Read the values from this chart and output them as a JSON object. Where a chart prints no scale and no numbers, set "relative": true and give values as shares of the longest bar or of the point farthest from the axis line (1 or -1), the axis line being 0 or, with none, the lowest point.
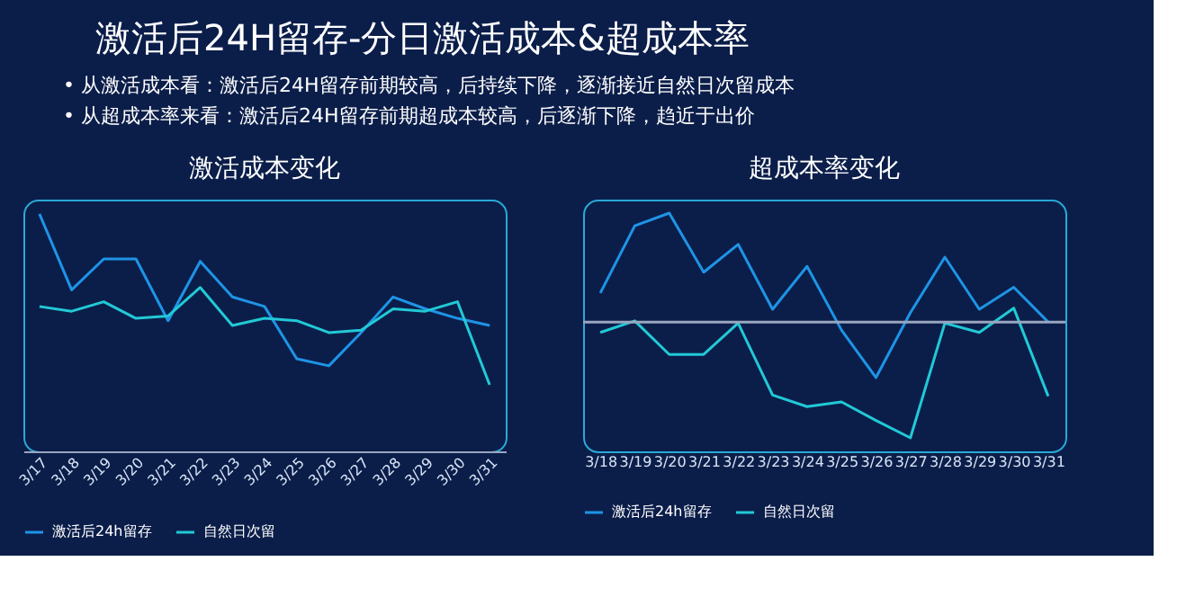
{
  "chart_data": [
    {
      "type": "line",
      "title": "激活成本变化",
      "annotations": [
        "激活后24H留存-分日激活成本&超成本率",
        "•  从激活成本看：激活后24H留存前期较高，后持续下降，逐渐接近自然日次留成本",
        "•  从超成本率来看：激活后24H留存前期超成本较高，后逐渐下降，趋近于出价"
      ],
      "relative": true,
      "legend": "bottom",
      "categories": [
        "3/17",
        "3/18",
        "3/19",
        "3/20",
        "3/21",
        "3/22",
        "3/23",
        "3/24",
        "3/25",
        "3/26",
        "3/27",
        "3/28",
        "3/29",
        "3/30",
        "3/31"
      ],
      "series": [
        {
          "name": "激活后24h留存",
          "color": "#1e94e6",
          "values": [
            1,
            0.68,
            0.81,
            0.81,
            0.55,
            0.8,
            0.65,
            0.61,
            0.39,
            0.36,
            0.5,
            0.65,
            0.6,
            0.56,
            0.53
          ]
        },
        {
          "name": "自然日次留",
          "color": "#22c9d6",
          "values": [
            0.61,
            0.59,
            0.63,
            0.56,
            0.57,
            0.69,
            0.53,
            0.56,
            0.55,
            0.5,
            0.51,
            0.6,
            0.59,
            0.63,
            0.28
          ]
        }
      ]
    },
    {
      "type": "line",
      "title": "超成本率变化",
      "relative": true,
      "legend": "bottom",
      "categories": [
        "3/18",
        "3/19",
        "3/20",
        "3/21",
        "3/22",
        "3/23",
        "3/24",
        "3/25",
        "3/26",
        "3/27",
        "3/28",
        "3/29",
        "3/30",
        "3/31"
      ],
      "series": [
        {
          "name": "激活后24h留存",
          "color": "#1e94e6",
          "values": [
            0.25,
            0.83,
            0.94,
            0.43,
            0.67,
            0.11,
            0.48,
            -0.07,
            -0.48,
            0.08,
            0.56,
            0.11,
            0.3,
            0
          ]
        },
        {
          "name": "自然日次留",
          "color": "#22c9d6",
          "values": [
            -0.09,
            0.01,
            -0.28,
            -0.28,
            -0.01,
            -0.63,
            -0.73,
            -0.69,
            -0.85,
            -1,
            -0.01,
            -0.09,
            0.12,
            -0.64
          ]
        }
      ]
    }
  ]
}
